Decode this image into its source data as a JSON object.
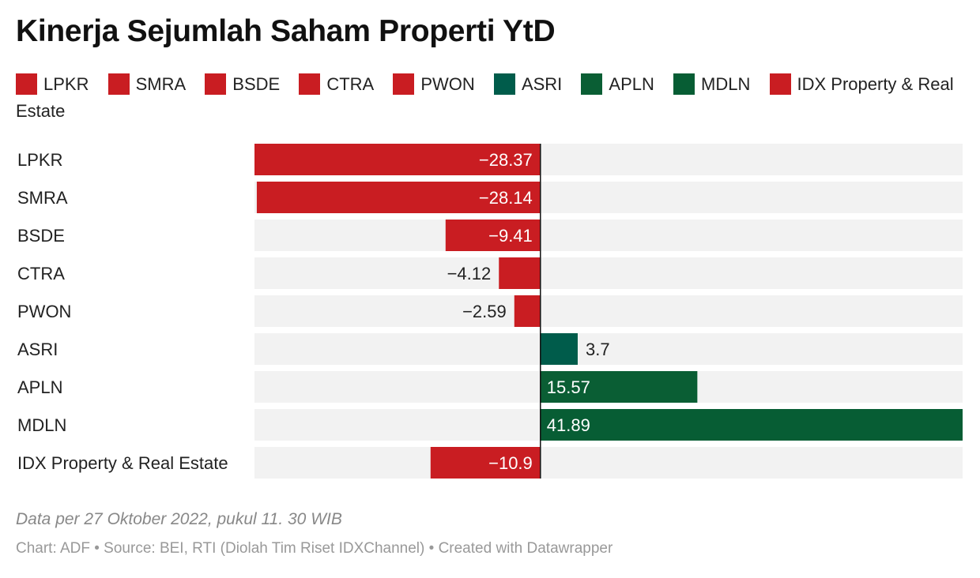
{
  "chart_data": {
    "type": "bar",
    "orientation": "horizontal",
    "title": "Kinerja Sejumlah Saham Properti YtD",
    "categories": [
      "LPKR",
      "SMRA",
      "BSDE",
      "CTRA",
      "PWON",
      "ASRI",
      "APLN",
      "MDLN",
      "IDX Property & Real Estate"
    ],
    "values": [
      -28.37,
      -28.14,
      -9.41,
      -4.12,
      -2.59,
      3.7,
      15.57,
      41.89,
      -10.9
    ],
    "value_labels": [
      "−28.37",
      "−28.14",
      "−9.41",
      "−4.12",
      "−2.59",
      "3.7",
      "15.57",
      "41.89",
      "−10.9"
    ],
    "colors": [
      "#c91d22",
      "#c91d22",
      "#c91d22",
      "#c91d22",
      "#c91d22",
      "#005c4b",
      "#0a5e34",
      "#075d34",
      "#c91d22"
    ],
    "legend": [
      {
        "label": "LPKR",
        "color": "#c91d22"
      },
      {
        "label": "SMRA",
        "color": "#c91d22"
      },
      {
        "label": "BSDE",
        "color": "#c91d22"
      },
      {
        "label": "CTRA",
        "color": "#c91d22"
      },
      {
        "label": "PWON",
        "color": "#c91d22"
      },
      {
        "label": "ASRI",
        "color": "#005c4b"
      },
      {
        "label": "APLN",
        "color": "#0a5e34"
      },
      {
        "label": "MDLN",
        "color": "#075d34"
      },
      {
        "label": "IDX Property & Real Estate",
        "color": "#c91d22"
      }
    ],
    "xlim": [
      -28.37,
      41.89
    ],
    "xlabel": "",
    "ylabel": "",
    "grid": false,
    "legend_position": "top",
    "background_band_color": "#f2f2f2"
  },
  "notes": "Data per 27 Oktober 2022, pukul 11. 30 WIB",
  "footer": "Chart: ADF • Source: BEI, RTI (Diolah Tim Riset IDXChannel) • Created with Datawrapper"
}
